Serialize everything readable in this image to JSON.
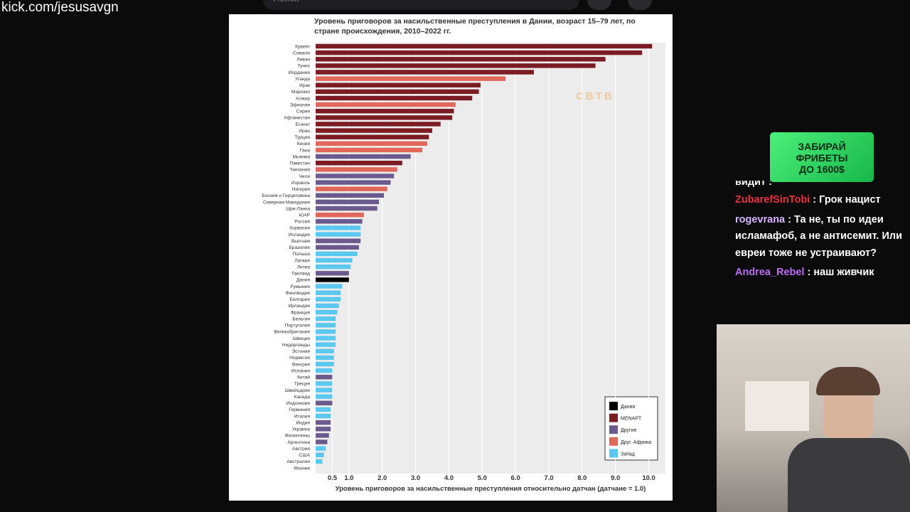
{
  "header": {
    "url": "kick.com/jesusavgn",
    "search_placeholder": "Поиск"
  },
  "chart_data": {
    "type": "bar",
    "orientation": "horizontal",
    "title": "Уровень приговоров за насильственные преступления в Дании, возраст 15–79 лет, по стране происхождения, 2010–2022 гг.",
    "xlabel": "Уровень приговоров за насильственные преступления относительно датчан (датчане = 1.0)",
    "watermark": "CBTB",
    "categories": [
      "Кувейт",
      "Сомали",
      "Ливан",
      "Тунис",
      "Иордания",
      "Уганда",
      "Ирак",
      "Марокко",
      "Алжир",
      "Эфиопия",
      "Сирия",
      "Афганистан",
      "Египет",
      "Иран",
      "Турция",
      "Кения",
      "Гана",
      "Мьянма",
      "Пакистан",
      "Танзания",
      "Чили",
      "Израиль",
      "Нигерия",
      "Босния и Герцеговина",
      "Северная Македония",
      "Шри-Ланка",
      "ЮАР",
      "Россия",
      "Хорватия",
      "Исландия",
      "Вьетнам",
      "Бразилия",
      "Польша",
      "Латвия",
      "Литва",
      "Таиланд",
      "Дания",
      "Румыния",
      "Финляндия",
      "Болгария",
      "Ирландия",
      "Франция",
      "Бельгия",
      "Португалия",
      "Великобритания",
      "Швеция",
      "Нидерланды",
      "Эстония",
      "Норвегия",
      "Венгрия",
      "Испания",
      "Китай",
      "Греция",
      "Швейцария",
      "Канада",
      "Индонезия",
      "Германия",
      "Италия",
      "Индия",
      "Украина",
      "Филиппины",
      "Аргентина",
      "Австрия",
      "США",
      "Австралия",
      "Япония"
    ],
    "values": [
      10.1,
      9.8,
      8.7,
      8.4,
      6.55,
      5.7,
      4.95,
      4.9,
      4.7,
      4.2,
      4.15,
      4.1,
      3.75,
      3.5,
      3.4,
      3.35,
      3.2,
      2.85,
      2.6,
      2.45,
      2.35,
      2.25,
      2.15,
      2.05,
      1.9,
      1.85,
      1.45,
      1.4,
      1.35,
      1.35,
      1.35,
      1.3,
      1.25,
      1.1,
      1.05,
      1.0,
      1.0,
      0.8,
      0.75,
      0.75,
      0.7,
      0.65,
      0.6,
      0.6,
      0.6,
      0.6,
      0.6,
      0.55,
      0.55,
      0.55,
      0.5,
      0.5,
      0.5,
      0.5,
      0.5,
      0.5,
      0.45,
      0.45,
      0.45,
      0.45,
      0.4,
      0.35,
      0.3,
      0.25,
      0.2,
      0
    ],
    "colors": [
      "#7b1c24",
      "#7b1c24",
      "#7b1c24",
      "#7b1c24",
      "#7b1c24",
      "#e0675a",
      "#7b1c24",
      "#7b1c24",
      "#7b1c24",
      "#e0675a",
      "#7b1c24",
      "#7b1c24",
      "#7b1c24",
      "#7b1c24",
      "#7b1c24",
      "#e0675a",
      "#e0675a",
      "#6a5a8e",
      "#7b1c24",
      "#e0675a",
      "#6a5a8e",
      "#6a5a8e",
      "#e0675a",
      "#6a5a8e",
      "#6a5a8e",
      "#6a5a8e",
      "#e0675a",
      "#6a5a8e",
      "#5bc8ef",
      "#5bc8ef",
      "#6a5a8e",
      "#6a5a8e",
      "#5bc8ef",
      "#5bc8ef",
      "#5bc8ef",
      "#6a5a8e",
      "#000000",
      "#5bc8ef",
      "#5bc8ef",
      "#5bc8ef",
      "#5bc8ef",
      "#5bc8ef",
      "#5bc8ef",
      "#5bc8ef",
      "#5bc8ef",
      "#5bc8ef",
      "#5bc8ef",
      "#5bc8ef",
      "#5bc8ef",
      "#5bc8ef",
      "#5bc8ef",
      "#6a5a8e",
      "#5bc8ef",
      "#5bc8ef",
      "#5bc8ef",
      "#6a5a8e",
      "#5bc8ef",
      "#5bc8ef",
      "#6a5a8e",
      "#6a5a8e",
      "#6a5a8e",
      "#6a5a8e",
      "#5bc8ef",
      "#5bc8ef",
      "#5bc8ef",
      "#5bc8ef"
    ],
    "legend": [
      {
        "name": "Дания",
        "color": "#000000"
      },
      {
        "name": "MENAPT",
        "color": "#7b1c24"
      },
      {
        "name": "Другие",
        "color": "#6a5a8e"
      },
      {
        "name": "Друг. Африка",
        "color": "#e0675a"
      },
      {
        "name": "Запад",
        "color": "#5bc8ef"
      }
    ],
    "legend_position": "lower right",
    "xlim": [
      0,
      10.5
    ],
    "xticks": [
      0.5,
      {
        "value": 1,
        "label": "1.0"
      },
      {
        "value": 2,
        "label": "2.0"
      },
      {
        "value": 3,
        "label": "3.0"
      },
      {
        "value": 4,
        "label": "4.0"
      },
      {
        "value": 5,
        "label": "5.0"
      },
      {
        "value": 6,
        "label": "6.0"
      },
      {
        "value": 7,
        "label": "7.0"
      },
      {
        "value": 8,
        "label": "8.0"
      },
      {
        "value": 9,
        "label": "9.0"
      },
      {
        "value": 10,
        "label": "10.0"
      }
    ],
    "grid": true
  },
  "banner": {
    "lines": [
      "ЗАБИРАЙ",
      "ФРИБЕТЫ",
      "ДО 1600$"
    ]
  },
  "chat": {
    "partial": "видит :",
    "messages": [
      {
        "user": "ZubarefSinTobi",
        "color": "#e8323c",
        "text": ": Грок нацист"
      },
      {
        "user": "rogevrana",
        "color": "#d8b4ff",
        "text": ": Та не, ты по идеи исламафоб, а не антисемит. Или евреи тоже не устраивают?"
      },
      {
        "user": "Andrea_Rebel",
        "color": "#b86cf2",
        "text": ": наш живчик"
      }
    ]
  }
}
